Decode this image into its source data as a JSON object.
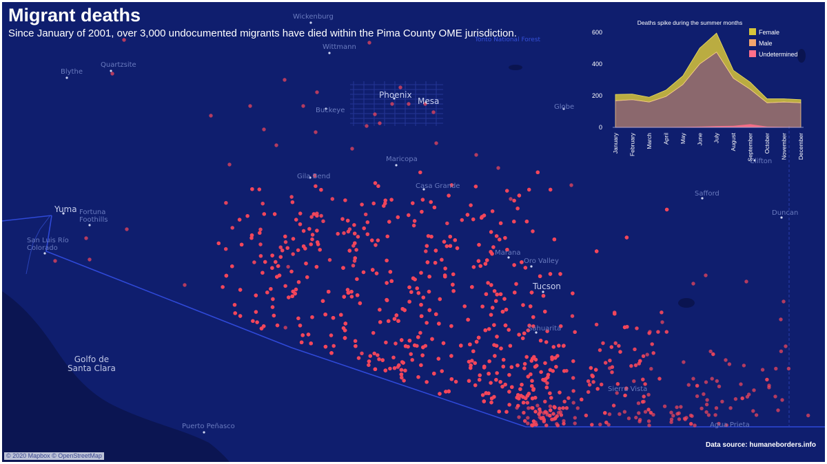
{
  "header": {
    "title": "Migrant deaths",
    "subtitle": "Since January of 2001, over 3,000 undocumented migrants have died within the Pima County OME jurisdiction."
  },
  "map": {
    "background_color": "#0f1e6e",
    "land_color": "#14257b",
    "water_color": "#0b1552",
    "marker_color": "#f2465c",
    "places": [
      {
        "name": "Wickenburg",
        "style": "small"
      },
      {
        "name": "Quartzsite",
        "style": "small"
      },
      {
        "name": "Blythe",
        "style": "small"
      },
      {
        "name": "Wittmann",
        "style": "small"
      },
      {
        "name": "Phoenix",
        "style": "big"
      },
      {
        "name": "Mesa",
        "style": "big"
      },
      {
        "name": "Buckeye",
        "style": "small"
      },
      {
        "name": "Maricopa",
        "style": "small"
      },
      {
        "name": "Globe",
        "style": "small"
      },
      {
        "name": "Tonto National Forest",
        "style": "park"
      },
      {
        "name": "Gila Bend",
        "style": "small"
      },
      {
        "name": "Casa Grande",
        "style": "small"
      },
      {
        "name": "Yuma",
        "style": "big"
      },
      {
        "name": "Fortuna Foothills",
        "style": "small"
      },
      {
        "name": "San Luis Río Colorado",
        "style": "small"
      },
      {
        "name": "Marana",
        "style": "small"
      },
      {
        "name": "Oro Valley",
        "style": "small"
      },
      {
        "name": "Tucson",
        "style": "big"
      },
      {
        "name": "Sahuarita",
        "style": "small"
      },
      {
        "name": "Safford",
        "style": "small"
      },
      {
        "name": "Clifton",
        "style": "small"
      },
      {
        "name": "Duncan",
        "style": "small"
      },
      {
        "name": "Sierra Vista",
        "style": "small"
      },
      {
        "name": "Agua Prieta",
        "style": "small"
      },
      {
        "name": "Golfo de Santa Clara",
        "style": "water"
      },
      {
        "name": "Puerto Peñasco",
        "style": "small"
      }
    ]
  },
  "chart_data": {
    "type": "area",
    "title": "Deaths spike during the summer months",
    "categories": [
      "January",
      "February",
      "March",
      "April",
      "May",
      "June",
      "July",
      "August",
      "September",
      "October",
      "November",
      "December"
    ],
    "series": [
      {
        "name": "Female",
        "color": "#d8c53a",
        "values": [
          40,
          35,
          30,
          40,
          55,
          100,
          120,
          50,
          45,
          25,
          20,
          20
        ]
      },
      {
        "name": "Male",
        "color": "#f3a56d",
        "values": [
          168,
          175,
          160,
          195,
          270,
          400,
          475,
          310,
          240,
          155,
          160,
          155
        ]
      },
      {
        "name": "Undetermined",
        "color": "#ff6f8a",
        "values": [
          2,
          2,
          2,
          2,
          3,
          5,
          8,
          10,
          20,
          5,
          3,
          2
        ]
      }
    ],
    "ylim": [
      0,
      630
    ],
    "yticks": [
      0,
      200,
      400,
      600
    ],
    "grid": false,
    "legend": "top-right"
  },
  "footer": {
    "data_source": "Data source: humaneborders.info",
    "attribution": "© 2020 Mapbox © OpenStreetMap"
  }
}
